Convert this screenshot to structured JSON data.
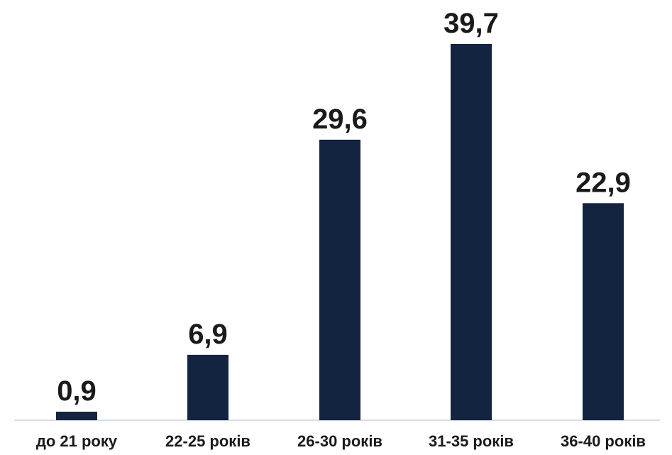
{
  "chart_data": {
    "type": "bar",
    "categories": [
      "до 21 року",
      "22-25 років",
      "26-30 років",
      "31-35 років",
      "36-40 років"
    ],
    "values": [
      0.9,
      6.9,
      29.6,
      39.7,
      22.9
    ],
    "value_labels": [
      "0,9",
      "6,9",
      "29,6",
      "39,7",
      "22,9"
    ],
    "ylim": [
      0,
      40
    ],
    "grid": false,
    "legend": "none",
    "colors": {
      "bar": "#12243f",
      "axis": "#c8d3e0",
      "text": "#1a1a1a"
    }
  }
}
